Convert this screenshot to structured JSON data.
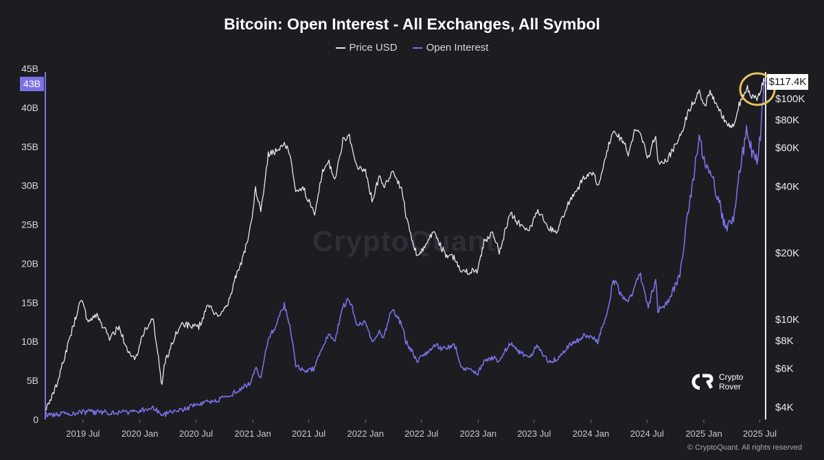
{
  "chart_data": {
    "type": "line",
    "title": "Bitcoin: Open Interest - All Exchanges, All Symbol",
    "legend": [
      "Price USD",
      "Open Interest"
    ],
    "legend_position": "top-center",
    "grid": false,
    "x_ticks": [
      "2019 Jul",
      "2020 Jan",
      "2020 Jul",
      "2021 Jan",
      "2021 Jul",
      "2022 Jan",
      "2022 Jul",
      "2023 Jan",
      "2023 Jul",
      "2024 Jan",
      "2024 Jul",
      "2025 Jan",
      "2025 Jul"
    ],
    "x_range": [
      "2019-03-01",
      "2025-07-20"
    ],
    "y_left": {
      "ticks": [
        "0",
        "5B",
        "10B",
        "15B",
        "20B",
        "25B",
        "30B",
        "35B",
        "40B",
        "45B"
      ],
      "range": [
        0,
        45
      ],
      "unit": "B",
      "current_label": "43B",
      "current_value": 43
    },
    "y_right": {
      "scale": "log",
      "ticks": [
        "$4K",
        "$6K",
        "$8K",
        "$10K",
        "$20K",
        "$40K",
        "$60K",
        "$80K",
        "$100K"
      ],
      "tick_values": [
        4000,
        6000,
        8000,
        10000,
        20000,
        40000,
        60000,
        80000,
        100000
      ],
      "current_label": "$117.4K",
      "current_value": 117400
    },
    "series": [
      {
        "name": "Price USD",
        "axis": "right",
        "color": "#e9e9ee",
        "points": [
          [
            "2019-03-01",
            3800
          ],
          [
            "2019-04-10",
            5200
          ],
          [
            "2019-05-15",
            7900
          ],
          [
            "2019-06-26",
            12500
          ],
          [
            "2019-07-15",
            10000
          ],
          [
            "2019-08-15",
            10500
          ],
          [
            "2019-09-25",
            8200
          ],
          [
            "2019-10-26",
            9300
          ],
          [
            "2019-11-25",
            7000
          ],
          [
            "2019-12-18",
            6600
          ],
          [
            "2020-01-15",
            8800
          ],
          [
            "2020-02-13",
            10300
          ],
          [
            "2020-03-13",
            4900
          ],
          [
            "2020-03-20",
            6200
          ],
          [
            "2020-04-30",
            8800
          ],
          [
            "2020-05-20",
            9500
          ],
          [
            "2020-06-15",
            9400
          ],
          [
            "2020-07-10",
            9200
          ],
          [
            "2020-08-10",
            11800
          ],
          [
            "2020-09-10",
            10300
          ],
          [
            "2020-10-10",
            11300
          ],
          [
            "2020-11-05",
            15500
          ],
          [
            "2020-12-01",
            19000
          ],
          [
            "2020-12-27",
            27000
          ],
          [
            "2021-01-10",
            39000
          ],
          [
            "2021-01-27",
            31000
          ],
          [
            "2021-02-20",
            56000
          ],
          [
            "2021-03-10",
            57000
          ],
          [
            "2021-04-13",
            63500
          ],
          [
            "2021-05-01",
            57000
          ],
          [
            "2021-05-20",
            37000
          ],
          [
            "2021-06-15",
            39000
          ],
          [
            "2021-07-20",
            30000
          ],
          [
            "2021-08-15",
            47000
          ],
          [
            "2021-09-05",
            51000
          ],
          [
            "2021-09-25",
            43000
          ],
          [
            "2021-10-20",
            65000
          ],
          [
            "2021-11-10",
            67000
          ],
          [
            "2021-12-05",
            49000
          ],
          [
            "2022-01-01",
            47000
          ],
          [
            "2022-01-22",
            35000
          ],
          [
            "2022-02-15",
            44000
          ],
          [
            "2022-03-01",
            39000
          ],
          [
            "2022-03-28",
            47000
          ],
          [
            "2022-05-01",
            38000
          ],
          [
            "2022-05-12",
            29000
          ],
          [
            "2022-06-18",
            19000
          ],
          [
            "2022-07-30",
            23800
          ],
          [
            "2022-08-14",
            24400
          ],
          [
            "2022-09-15",
            19800
          ],
          [
            "2022-10-15",
            19200
          ],
          [
            "2022-11-09",
            16500
          ],
          [
            "2022-12-31",
            16600
          ],
          [
            "2023-01-20",
            22700
          ],
          [
            "2023-02-20",
            24500
          ],
          [
            "2023-03-10",
            20000
          ],
          [
            "2023-04-14",
            30400
          ],
          [
            "2023-05-10",
            27500
          ],
          [
            "2023-06-15",
            25000
          ],
          [
            "2023-07-13",
            31500
          ],
          [
            "2023-08-18",
            26000
          ],
          [
            "2023-09-11",
            25000
          ],
          [
            "2023-10-25",
            34500
          ],
          [
            "2023-11-15",
            37500
          ],
          [
            "2023-12-08",
            44000
          ],
          [
            "2024-01-11",
            46500
          ],
          [
            "2024-01-23",
            39500
          ],
          [
            "2024-02-28",
            62500
          ],
          [
            "2024-03-14",
            73000
          ],
          [
            "2024-04-15",
            63500
          ],
          [
            "2024-05-01",
            57000
          ],
          [
            "2024-05-21",
            71000
          ],
          [
            "2024-06-07",
            71000
          ],
          [
            "2024-07-05",
            54000
          ],
          [
            "2024-07-29",
            69500
          ],
          [
            "2024-08-05",
            51500
          ],
          [
            "2024-09-06",
            53500
          ],
          [
            "2024-10-15",
            67000
          ],
          [
            "2024-11-12",
            88000
          ],
          [
            "2024-12-17",
            107000
          ],
          [
            "2025-01-05",
            93000
          ],
          [
            "2025-01-21",
            106000
          ],
          [
            "2025-02-25",
            86000
          ],
          [
            "2025-03-11",
            78500
          ],
          [
            "2025-04-07",
            75000
          ],
          [
            "2025-04-25",
            94000
          ],
          [
            "2025-05-22",
            111500
          ],
          [
            "2025-06-05",
            101000
          ],
          [
            "2025-06-22",
            100500
          ],
          [
            "2025-07-03",
            109500
          ],
          [
            "2025-07-14",
            122000
          ],
          [
            "2025-07-20",
            117400
          ]
        ]
      },
      {
        "name": "Open Interest",
        "axis": "left",
        "color": "#7b72e6",
        "points": [
          [
            "2019-03-01",
            0.6
          ],
          [
            "2019-05-15",
            0.8
          ],
          [
            "2019-07-15",
            1.0
          ],
          [
            "2019-09-25",
            0.9
          ],
          [
            "2019-12-18",
            1.0
          ],
          [
            "2020-02-13",
            1.6
          ],
          [
            "2020-03-13",
            0.6
          ],
          [
            "2020-05-20",
            1.3
          ],
          [
            "2020-07-10",
            2.0
          ],
          [
            "2020-09-10",
            2.5
          ],
          [
            "2020-11-05",
            3.5
          ],
          [
            "2020-12-27",
            4.8
          ],
          [
            "2021-01-10",
            6.5
          ],
          [
            "2021-01-27",
            5.5
          ],
          [
            "2021-02-20",
            10.5
          ],
          [
            "2021-03-10",
            11.5
          ],
          [
            "2021-04-13",
            14.7
          ],
          [
            "2021-05-01",
            12.0
          ],
          [
            "2021-05-20",
            7.0
          ],
          [
            "2021-06-15",
            6.3
          ],
          [
            "2021-07-20",
            6.5
          ],
          [
            "2021-08-15",
            9.5
          ],
          [
            "2021-09-05",
            11.0
          ],
          [
            "2021-09-25",
            10.3
          ],
          [
            "2021-10-20",
            14.5
          ],
          [
            "2021-11-10",
            15.5
          ],
          [
            "2021-12-05",
            12.0
          ],
          [
            "2022-01-01",
            12.5
          ],
          [
            "2022-01-22",
            10.0
          ],
          [
            "2022-02-15",
            11.5
          ],
          [
            "2022-03-01",
            10.5
          ],
          [
            "2022-03-28",
            14.2
          ],
          [
            "2022-05-01",
            12.0
          ],
          [
            "2022-05-12",
            10.0
          ],
          [
            "2022-06-18",
            7.5
          ],
          [
            "2022-07-30",
            9.0
          ],
          [
            "2022-08-14",
            9.5
          ],
          [
            "2022-09-15",
            9.0
          ],
          [
            "2022-10-15",
            9.8
          ],
          [
            "2022-11-09",
            6.6
          ],
          [
            "2022-12-31",
            6.0
          ],
          [
            "2023-01-20",
            7.5
          ],
          [
            "2023-02-20",
            8.0
          ],
          [
            "2023-03-10",
            7.5
          ],
          [
            "2023-04-14",
            9.8
          ],
          [
            "2023-05-10",
            8.7
          ],
          [
            "2023-06-15",
            8.0
          ],
          [
            "2023-07-13",
            9.5
          ],
          [
            "2023-08-18",
            7.3
          ],
          [
            "2023-09-11",
            7.8
          ],
          [
            "2023-10-25",
            9.5
          ],
          [
            "2023-11-15",
            10.0
          ],
          [
            "2023-12-08",
            10.8
          ],
          [
            "2024-01-11",
            10.5
          ],
          [
            "2024-01-23",
            10.0
          ],
          [
            "2024-02-28",
            14.5
          ],
          [
            "2024-03-14",
            18.0
          ],
          [
            "2024-04-15",
            15.5
          ],
          [
            "2024-05-01",
            15.0
          ],
          [
            "2024-05-21",
            17.0
          ],
          [
            "2024-06-07",
            19.0
          ],
          [
            "2024-07-05",
            14.5
          ],
          [
            "2024-07-29",
            18.0
          ],
          [
            "2024-08-05",
            14.0
          ],
          [
            "2024-09-06",
            15.0
          ],
          [
            "2024-10-15",
            18.5
          ],
          [
            "2024-11-12",
            27.0
          ],
          [
            "2024-12-17",
            35.8
          ],
          [
            "2025-01-05",
            33.0
          ],
          [
            "2025-01-21",
            32.0
          ],
          [
            "2025-02-25",
            27.0
          ],
          [
            "2025-03-11",
            24.5
          ],
          [
            "2025-04-07",
            26.0
          ],
          [
            "2025-04-25",
            31.5
          ],
          [
            "2025-05-22",
            37.5
          ],
          [
            "2025-06-05",
            34.0
          ],
          [
            "2025-06-22",
            33.5
          ],
          [
            "2025-07-03",
            36.5
          ],
          [
            "2025-07-14",
            43.5
          ],
          [
            "2025-07-20",
            43.0
          ]
        ]
      }
    ]
  },
  "watermark": "CryptoQuant",
  "brand": {
    "line1": "Crypto",
    "line2": "Rover"
  },
  "copyright": "© CryptoQuant. All rights reserved",
  "colors": {
    "background": "#1c1c21",
    "price": "#e9e9ee",
    "open_interest": "#7b72e6",
    "highlight_circle": "#e7c35a"
  }
}
